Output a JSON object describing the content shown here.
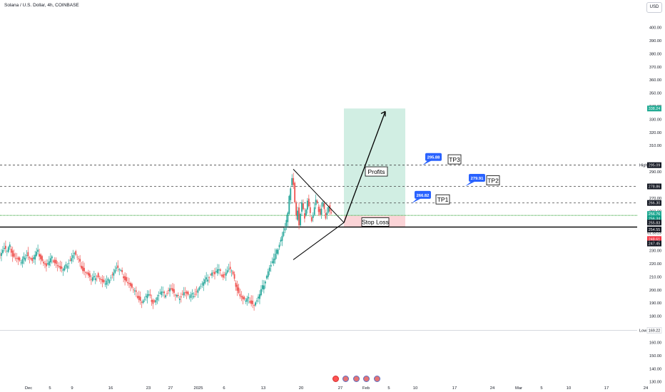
{
  "header": {
    "symbol_title": "Solana / U.S. Dollar, 4h, COINBASE",
    "currency_button": "USD"
  },
  "chart_data": {
    "type": "candlestick",
    "symbol": "Solana / U.S. Dollar",
    "interval": "4h",
    "exchange": "COINBASE",
    "currency": "USD",
    "ylim": [
      130,
      410
    ],
    "price_ticks": [
      130,
      140,
      150,
      160,
      170,
      180,
      190,
      200,
      210,
      220,
      230,
      260,
      270,
      280,
      290,
      295,
      310,
      320,
      330,
      340,
      350,
      360,
      370,
      380,
      390,
      400
    ],
    "price_tick_labels": [
      "130.00",
      "140.00",
      "150.00",
      "160.00",
      "170.00",
      "180.00",
      "190.00",
      "200.00",
      "210.00",
      "220.00",
      "230.00",
      "260.00",
      "270.00",
      "280.00",
      "290.00",
      "295.00",
      "310.00",
      "320.00",
      "330.00",
      "340.00",
      "350.00",
      "360.00",
      "370.00",
      "380.00",
      "390.00",
      "400.00"
    ],
    "x_labels": [
      "Dec",
      "5",
      "9",
      "16",
      "23",
      "27",
      "2025",
      "6",
      "13",
      "20",
      "27",
      "Feb",
      "5",
      "10",
      "17",
      "24",
      "Mar",
      "5",
      "10",
      "17",
      "24"
    ],
    "price_path": [
      [
        0,
        226
      ],
      [
        2,
        229
      ],
      [
        4,
        232
      ],
      [
        6,
        229
      ],
      [
        8,
        233
      ],
      [
        10,
        227
      ],
      [
        12,
        225
      ],
      [
        14,
        223
      ],
      [
        16,
        220
      ],
      [
        18,
        224
      ],
      [
        20,
        228
      ],
      [
        22,
        225
      ],
      [
        24,
        222
      ],
      [
        26,
        226
      ],
      [
        28,
        229
      ],
      [
        30,
        225
      ],
      [
        32,
        221
      ],
      [
        34,
        218
      ],
      [
        36,
        221
      ],
      [
        38,
        224
      ],
      [
        40,
        222
      ],
      [
        42,
        219
      ],
      [
        44,
        216
      ],
      [
        46,
        215
      ],
      [
        48,
        218
      ],
      [
        50,
        222
      ],
      [
        52,
        225
      ],
      [
        54,
        228
      ],
      [
        56,
        224
      ],
      [
        58,
        220
      ],
      [
        60,
        216
      ],
      [
        62,
        214
      ],
      [
        64,
        211
      ],
      [
        66,
        207
      ],
      [
        68,
        209
      ],
      [
        70,
        212
      ],
      [
        72,
        209
      ],
      [
        74,
        206
      ],
      [
        76,
        204
      ],
      [
        78,
        207
      ],
      [
        80,
        211
      ],
      [
        82,
        214
      ],
      [
        84,
        217
      ],
      [
        86,
        215
      ],
      [
        88,
        212
      ],
      [
        90,
        209
      ],
      [
        92,
        206
      ],
      [
        94,
        203
      ],
      [
        96,
        199
      ],
      [
        98,
        197
      ],
      [
        100,
        194
      ],
      [
        102,
        191
      ],
      [
        104,
        193
      ],
      [
        106,
        196
      ],
      [
        108,
        194
      ],
      [
        110,
        191
      ],
      [
        112,
        193
      ],
      [
        114,
        196
      ],
      [
        116,
        198
      ],
      [
        118,
        196
      ],
      [
        120,
        199
      ],
      [
        122,
        202
      ],
      [
        124,
        199
      ],
      [
        126,
        195
      ],
      [
        128,
        194
      ],
      [
        130,
        196
      ],
      [
        132,
        199
      ],
      [
        134,
        197
      ],
      [
        136,
        194
      ],
      [
        138,
        196
      ],
      [
        140,
        198
      ],
      [
        142,
        201
      ],
      [
        144,
        203
      ],
      [
        146,
        205
      ],
      [
        148,
        208
      ],
      [
        150,
        211
      ],
      [
        152,
        214
      ],
      [
        154,
        212
      ],
      [
        156,
        215
      ],
      [
        158,
        213
      ],
      [
        160,
        211
      ],
      [
        162,
        214
      ],
      [
        164,
        216
      ],
      [
        166,
        214
      ],
      [
        168,
        207
      ],
      [
        170,
        201
      ],
      [
        172,
        196
      ],
      [
        174,
        193
      ],
      [
        176,
        191
      ],
      [
        178,
        193
      ],
      [
        180,
        191
      ],
      [
        182,
        189
      ],
      [
        184,
        192
      ],
      [
        186,
        196
      ],
      [
        188,
        202
      ],
      [
        190,
        208
      ],
      [
        192,
        215
      ],
      [
        194,
        219
      ],
      [
        196,
        223
      ],
      [
        198,
        229
      ],
      [
        200,
        236
      ],
      [
        202,
        242
      ],
      [
        204,
        247
      ],
      [
        206,
        258
      ],
      [
        207,
        270
      ],
      [
        208,
        279
      ],
      [
        209,
        286
      ],
      [
        210,
        280
      ],
      [
        211,
        266
      ],
      [
        212,
        255
      ],
      [
        213,
        262
      ],
      [
        214,
        250
      ],
      [
        215,
        258
      ],
      [
        216,
        266
      ],
      [
        217,
        260
      ],
      [
        218,
        256
      ],
      [
        219,
        262
      ],
      [
        220,
        268
      ],
      [
        221,
        263
      ],
      [
        222,
        257
      ],
      [
        223,
        254
      ],
      [
        224,
        258
      ],
      [
        225,
        263
      ],
      [
        226,
        268
      ],
      [
        227,
        265
      ],
      [
        228,
        261
      ],
      [
        229,
        258
      ],
      [
        230,
        262
      ],
      [
        231,
        266
      ],
      [
        232,
        260
      ],
      [
        233,
        256
      ],
      [
        234,
        260
      ],
      [
        235,
        263
      ],
      [
        236,
        259
      ],
      [
        237,
        257
      ]
    ],
    "x_span": 460,
    "horizontal_lines": [
      {
        "label": "TP3",
        "price": 295.09,
        "style": "dashed"
      },
      {
        "label": "TP2",
        "price": 278.86,
        "style": "dashed"
      },
      {
        "label": "TP1",
        "price": 266.3,
        "style": "dashed"
      },
      {
        "label": "green",
        "price": 256.76,
        "style": "solid-green"
      },
      {
        "label": "support",
        "price": 247.9,
        "style": "solid-black"
      },
      {
        "label": "Low",
        "price": 169.22,
        "style": "solid-gray"
      }
    ],
    "price_badges": [
      {
        "text": "338.24",
        "price": 338.24,
        "color": "#22ab94"
      },
      {
        "text": "295.09",
        "price": 295.09,
        "color": "#131722"
      },
      {
        "text": "278.86",
        "price": 278.86,
        "color": "#131722"
      },
      {
        "text": "266.30",
        "price": 266.3,
        "color": "#131722"
      },
      {
        "text": "256.76",
        "price": 257.9,
        "color": "#22ab94"
      },
      {
        "text": "256.34",
        "price": 254.4,
        "color": "#089981"
      },
      {
        "text": "255.83",
        "price": 251.3,
        "color": "#131722"
      },
      {
        "text": "254.55",
        "price": 246.1,
        "color": "#131722"
      },
      {
        "text": "248.61",
        "price": 238.8,
        "color": "#f23645"
      },
      {
        "text": "247.45",
        "price": 235.4,
        "color": "#131722"
      },
      {
        "text": "169.22",
        "price": 169.22,
        "color": "#ffffff"
      }
    ],
    "countdown": "01:33:23",
    "high_label": "High",
    "low_label": "Low",
    "annotations": {
      "profits": "Profits",
      "stop_loss": "Stop Loss",
      "tp1": "TP1",
      "tp2": "TP2",
      "tp3": "TP3",
      "callout_tp1": "266.82",
      "callout_tp2": "279.91",
      "callout_tp3": "295.88"
    },
    "position": {
      "entry": 251.3,
      "target": 338.24,
      "stop": 247.9,
      "top_green": 256.76
    },
    "triangle": {
      "upper_start": 292,
      "lower_start": 223,
      "apex": 251.3
    },
    "arrow_target": 336
  },
  "colors": {
    "up": "#26a69a",
    "down": "#ef5350",
    "profit_zone": "#d1eee3",
    "loss_zone": "#fbd4d7",
    "callout": "#2962ff"
  }
}
